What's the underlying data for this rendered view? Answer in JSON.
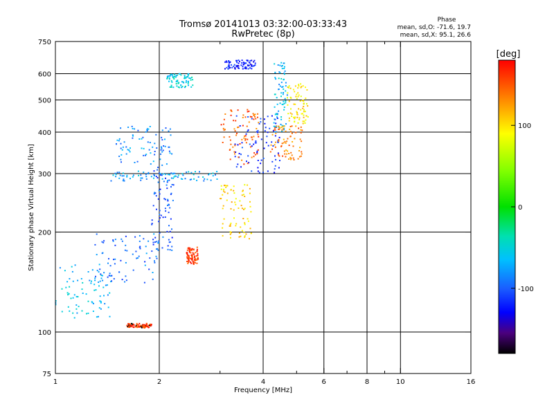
{
  "chart_data": {
    "type": "scatter",
    "title_line1": "Tromsø 20141013 03:32:00-03:33:43",
    "title_line2": "RwPretec (8p)",
    "phase_title": "Phase",
    "phase_line1": "mean, sd,O: -71.6, 19.7",
    "phase_line2": "mean, sd,X:  95.1, 26.6",
    "xlabel": "Frequency [MHz]",
    "ylabel": "Stationary phase Virtual Height [km]",
    "xscale": "log",
    "yscale": "log",
    "xlim": [
      1,
      16
    ],
    "ylim": [
      75,
      750
    ],
    "xticks": [
      1,
      2,
      4,
      6,
      8,
      10,
      16
    ],
    "xtick_labels": [
      "1",
      "2",
      "4",
      "6",
      "8",
      "10",
      "16"
    ],
    "xminor": [
      3,
      5,
      7,
      9
    ],
    "yticks": [
      75,
      100,
      200,
      300,
      400,
      500,
      600,
      750
    ],
    "ytick_labels": [
      "75",
      "100",
      "200",
      "300",
      "400",
      "500",
      "600",
      "750"
    ],
    "colorbar": {
      "label": "[deg]",
      "range": [
        -180,
        180
      ],
      "ticks": [
        100,
        0,
        -100
      ],
      "tick_labels": [
        "100",
        "0",
        "-100"
      ],
      "colormap": "rainbow"
    },
    "series": [
      {
        "freq_range": [
          1.0,
          1.45
        ],
        "height_range": [
          110,
          160
        ],
        "phase": -60
      },
      {
        "freq_range": [
          1.3,
          2.0
        ],
        "height_range": [
          140,
          200
        ],
        "phase": -85
      },
      {
        "freq_range": [
          1.9,
          2.2
        ],
        "height_range": [
          175,
          320
        ],
        "phase": -95
      },
      {
        "freq_range": [
          1.45,
          3.0
        ],
        "height_range": [
          285,
          305
        ],
        "phase": -65
      },
      {
        "freq_range": [
          1.5,
          2.2
        ],
        "height_range": [
          320,
          420
        ],
        "phase": -75
      },
      {
        "freq_range": [
          2.1,
          2.5
        ],
        "height_range": [
          545,
          600
        ],
        "phase": -50
      },
      {
        "freq_range": [
          3.1,
          3.8
        ],
        "height_range": [
          620,
          660
        ],
        "phase": -110
      },
      {
        "freq_range": [
          3.3,
          4.5
        ],
        "height_range": [
          300,
          450
        ],
        "phase": -105
      },
      {
        "freq_range": [
          4.3,
          4.7
        ],
        "height_range": [
          400,
          650
        ],
        "phase": -60
      },
      {
        "freq_range": [
          3.0,
          3.7
        ],
        "height_range": [
          190,
          280
        ],
        "phase": 110
      },
      {
        "freq_range": [
          3.0,
          3.9
        ],
        "height_range": [
          320,
          470
        ],
        "phase": 150
      },
      {
        "freq_range": [
          4.2,
          5.2
        ],
        "height_range": [
          330,
          420
        ],
        "phase": 140
      },
      {
        "freq_range": [
          4.7,
          5.4
        ],
        "height_range": [
          420,
          560
        ],
        "phase": 105
      },
      {
        "freq_range": [
          2.4,
          2.6
        ],
        "height_range": [
          160,
          180
        ],
        "phase": 160
      },
      {
        "freq_range": [
          1.6,
          1.9
        ],
        "height_range": [
          103,
          106
        ],
        "phase": 165
      }
    ]
  }
}
